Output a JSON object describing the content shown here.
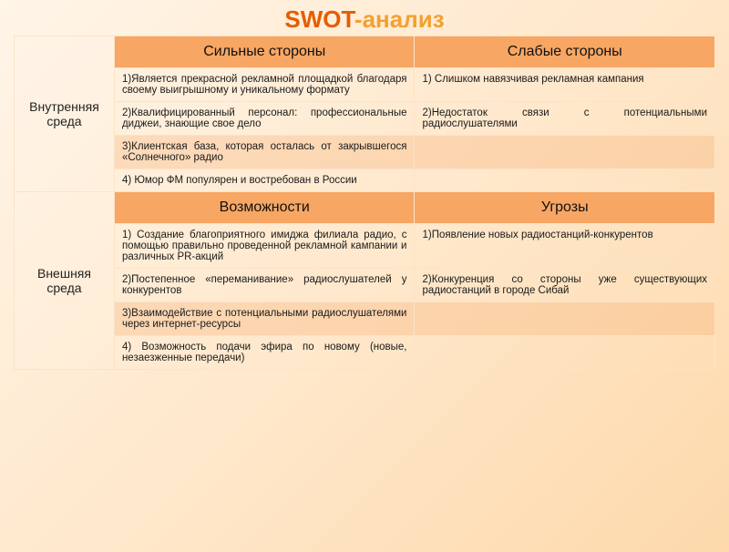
{
  "title": {
    "prefix": "SWOT",
    "suffix": "-анализ"
  },
  "internal": {
    "label": "Внутренняя среда",
    "strengths": {
      "header": "Сильные стороны",
      "items": [
        "1)Является прекрасной рекламной площадкой благодаря своему выигрышному и уникальному формату",
        "2)Квалифицированный персонал: профессиональные диджеи, знающие свое дело",
        "3)Клиентская база, которая осталась от закрывшегося «Солнечного» радио",
        "4) Юмор ФМ популярен и востребован в России"
      ]
    },
    "weaknesses": {
      "header": "Слабые стороны",
      "items": [
        "1) Слишком навязчивая рекламная кампания",
        "2)Недостаток связи с потенциальными радиослушателями",
        "",
        ""
      ]
    }
  },
  "external": {
    "label": "Внешняя среда",
    "opportunities": {
      "header": "Возможности",
      "items": [
        "1) Создание благоприятного имиджа филиала радио, с помощью правильно проведенной рекламной кампании и различных PR-акций",
        "2)Постепенное «переманивание» радиослушателей у конкурентов",
        "3)Взаимодействие с потенциальными радиослушателями через интернет-ресурсы",
        "4) Возможность подачи эфира по новому (новые, незаезженные передачи)"
      ]
    },
    "threats": {
      "header": "Угрозы",
      "items": [
        "1)Появление новых радиостанций-конкурентов",
        "2)Конкуренция со стороны уже существующих радиостанций в городе Сибай",
        "",
        ""
      ]
    }
  },
  "style": {
    "title_accent": "#e65c00",
    "title_color": "#f4a030",
    "header_bg": "#f7a663",
    "alt_row_bg": "rgba(246,166,99,0.28)",
    "border_color": "#fbe3c8",
    "page_bg_start": "#fff5e8",
    "page_bg_end": "#fdd9ab",
    "title_fontsize": 26,
    "body_fontsize": 11.5,
    "header_fontsize": 16,
    "label_fontsize": 14
  }
}
